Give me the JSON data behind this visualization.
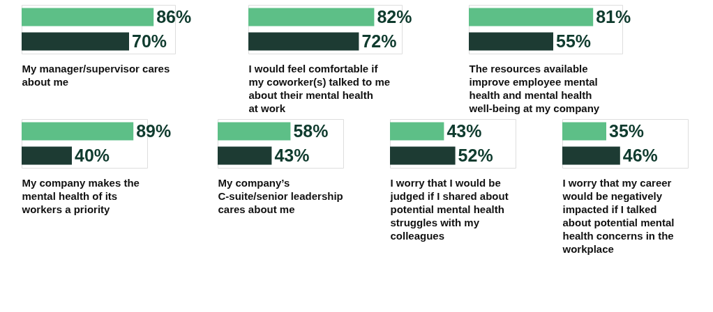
{
  "chart_data": [
    {
      "type": "bar",
      "orientation": "horizontal",
      "categories": [
        null,
        null
      ],
      "values": [
        86,
        70
      ],
      "value_labels": [
        "86%",
        "70%"
      ],
      "colors": [
        "#5dbf87",
        "#1d3b33"
      ],
      "xlim": [
        0,
        100
      ],
      "tick_labels": false,
      "xlabel": "My manager/supervisor cares about me"
    },
    {
      "type": "bar",
      "orientation": "horizontal",
      "categories": [
        null,
        null
      ],
      "values": [
        82,
        72
      ],
      "value_labels": [
        "82%",
        "72%"
      ],
      "colors": [
        "#5dbf87",
        "#1d3b33"
      ],
      "xlim": [
        0,
        100
      ],
      "tick_labels": false,
      "xlabel": "I would feel comfortable if my coworker(s) talked to me about their mental health at work"
    },
    {
      "type": "bar",
      "orientation": "horizontal",
      "categories": [
        null,
        null
      ],
      "values": [
        81,
        55
      ],
      "value_labels": [
        "81%",
        "55%"
      ],
      "colors": [
        "#5dbf87",
        "#1d3b33"
      ],
      "xlim": [
        0,
        100
      ],
      "tick_labels": false,
      "xlabel": "The resources available improve employee mental health and mental health well-being at my company"
    },
    {
      "type": "bar",
      "orientation": "horizontal",
      "categories": [
        null,
        null
      ],
      "values": [
        89,
        40
      ],
      "value_labels": [
        "89%",
        "40%"
      ],
      "colors": [
        "#5dbf87",
        "#1d3b33"
      ],
      "xlim": [
        0,
        100
      ],
      "tick_labels": false,
      "xlabel": "My company makes the mental health of its workers a priority"
    },
    {
      "type": "bar",
      "orientation": "horizontal",
      "categories": [
        null,
        null
      ],
      "values": [
        58,
        43
      ],
      "value_labels": [
        "58%",
        "43%"
      ],
      "colors": [
        "#5dbf87",
        "#1d3b33"
      ],
      "xlim": [
        0,
        100
      ],
      "tick_labels": false,
      "xlabel": "My company’s C-suite/senior leadership cares about me"
    },
    {
      "type": "bar",
      "orientation": "horizontal",
      "categories": [
        null,
        null
      ],
      "values": [
        43,
        52
      ],
      "value_labels": [
        "43%",
        "52%"
      ],
      "colors": [
        "#5dbf87",
        "#1d3b33"
      ],
      "xlim": [
        0,
        100
      ],
      "tick_labels": false,
      "xlabel": "I worry that I would be judged if I shared about potential mental health struggles with my colleagues"
    },
    {
      "type": "bar",
      "orientation": "horizontal",
      "categories": [
        null,
        null
      ],
      "values": [
        35,
        46
      ],
      "value_labels": [
        "35%",
        "46%"
      ],
      "colors": [
        "#5dbf87",
        "#1d3b33"
      ],
      "xlim": [
        0,
        100
      ],
      "tick_labels": false,
      "xlabel": "I worry that my career would be negatively impacted if I talked about potential mental health concerns in the workplace"
    }
  ]
}
